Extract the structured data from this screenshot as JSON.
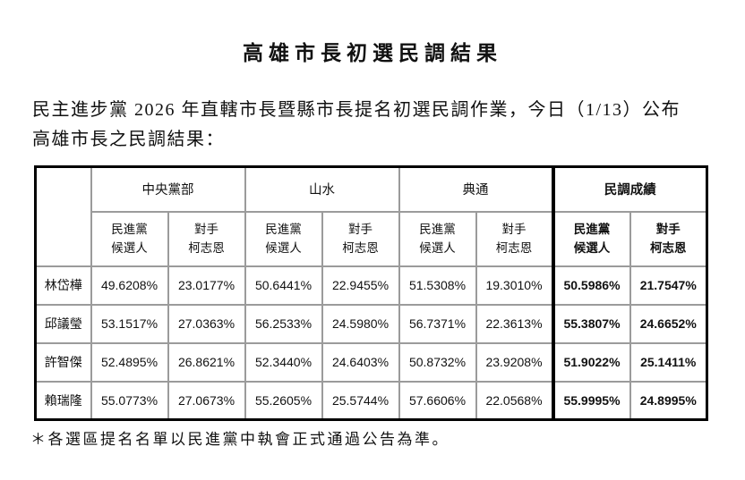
{
  "page": {
    "title": "高雄市長初選民調結果",
    "intro_line1": "民主進步黨 2026 年直轄市長暨縣市長提名初選民調作業，今日（1/13）公布",
    "intro_line2": "高雄市長之民調結果：",
    "footnote": "＊各選區提名名單以民進黨中執會正式通過公告為準。"
  },
  "table": {
    "groups": [
      "中央黨部",
      "山水",
      "典通",
      "民調成績"
    ],
    "subheader": {
      "dpp": "民進黨\n候選人",
      "opp": "對手\n柯志恩"
    },
    "rows": [
      {
        "name": "林岱樺",
        "values": [
          "49.6208%",
          "23.0177%",
          "50.6441%",
          "22.9455%",
          "51.5308%",
          "19.3010%",
          "50.5986%",
          "21.7547%"
        ]
      },
      {
        "name": "邱議瑩",
        "values": [
          "53.1517%",
          "27.0363%",
          "56.2533%",
          "24.5980%",
          "56.7371%",
          "22.3613%",
          "55.3807%",
          "24.6652%"
        ]
      },
      {
        "name": "許智傑",
        "values": [
          "52.4895%",
          "26.8621%",
          "52.3440%",
          "24.6403%",
          "50.8732%",
          "23.9208%",
          "51.9022%",
          "25.1411%"
        ]
      },
      {
        "name": "賴瑞隆",
        "values": [
          "55.0773%",
          "27.0673%",
          "55.2605%",
          "25.5744%",
          "57.6606%",
          "22.0568%",
          "55.9995%",
          "24.8995%"
        ]
      }
    ],
    "colors": {
      "grid_line": "#9b9b9b",
      "strong_border": "#000000",
      "text": "#111111",
      "background": "#ffffff"
    }
  }
}
